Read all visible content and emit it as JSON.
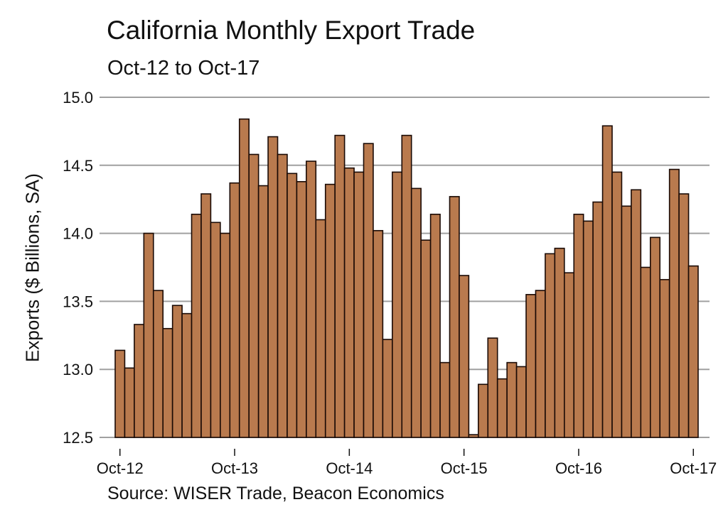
{
  "title": "California Monthly Export Trade",
  "subtitle": "Oct-12 to Oct-17",
  "ylabel": "Exports ($ Billions, SA)",
  "source": "Source: WISER Trade, Beacon Economics",
  "colors": {
    "bar_fill": "#b97a4e",
    "bar_stroke": "#1a0a05",
    "grid": "#a0a0a0"
  },
  "chart_data": {
    "type": "bar",
    "title": "California Monthly Export Trade",
    "subtitle": "Oct-12 to Oct-17",
    "xlabel": "",
    "ylabel": "Exports ($ Billions, SA)",
    "ylim": [
      12.5,
      15.0
    ],
    "yticks": [
      "12.5",
      "13.0",
      "13.5",
      "14.0",
      "14.5",
      "15.0"
    ],
    "xticks": [
      "Oct-12",
      "Oct-13",
      "Oct-14",
      "Oct-15",
      "Oct-16",
      "Oct-17"
    ],
    "grid": true,
    "legend": "none",
    "source": "Source: WISER Trade, Beacon Economics",
    "categories": [
      "Oct-12",
      "Nov-12",
      "Dec-12",
      "Jan-13",
      "Feb-13",
      "Mar-13",
      "Apr-13",
      "May-13",
      "Jun-13",
      "Jul-13",
      "Aug-13",
      "Sep-13",
      "Oct-13",
      "Nov-13",
      "Dec-13",
      "Jan-14",
      "Feb-14",
      "Mar-14",
      "Apr-14",
      "May-14",
      "Jun-14",
      "Jul-14",
      "Aug-14",
      "Sep-14",
      "Oct-14",
      "Nov-14",
      "Dec-14",
      "Jan-15",
      "Feb-15",
      "Mar-15",
      "Apr-15",
      "May-15",
      "Jun-15",
      "Jul-15",
      "Aug-15",
      "Sep-15",
      "Oct-15",
      "Nov-15",
      "Dec-15",
      "Jan-16",
      "Feb-16",
      "Mar-16",
      "Apr-16",
      "May-16",
      "Jun-16",
      "Jul-16",
      "Aug-16",
      "Sep-16",
      "Oct-16",
      "Nov-16",
      "Dec-16",
      "Jan-17",
      "Feb-17",
      "Mar-17",
      "Apr-17",
      "May-17",
      "Jun-17",
      "Jul-17",
      "Aug-17",
      "Sep-17",
      "Oct-17"
    ],
    "values": [
      13.14,
      13.01,
      13.33,
      14.0,
      13.58,
      13.3,
      13.47,
      13.41,
      14.14,
      14.29,
      14.08,
      14.0,
      14.37,
      14.84,
      14.58,
      14.35,
      14.71,
      14.58,
      14.44,
      14.38,
      14.53,
      14.1,
      14.36,
      14.72,
      14.48,
      14.45,
      14.66,
      14.02,
      13.22,
      14.45,
      14.72,
      14.33,
      13.95,
      14.14,
      13.05,
      14.27,
      13.69,
      12.52,
      12.89,
      13.23,
      12.93,
      13.05,
      13.02,
      13.55,
      13.58,
      13.85,
      13.89,
      13.71,
      14.14,
      14.09,
      14.23,
      14.79,
      14.45,
      14.2,
      14.32,
      13.75,
      13.97,
      13.66,
      14.47,
      14.29,
      13.76
    ]
  }
}
